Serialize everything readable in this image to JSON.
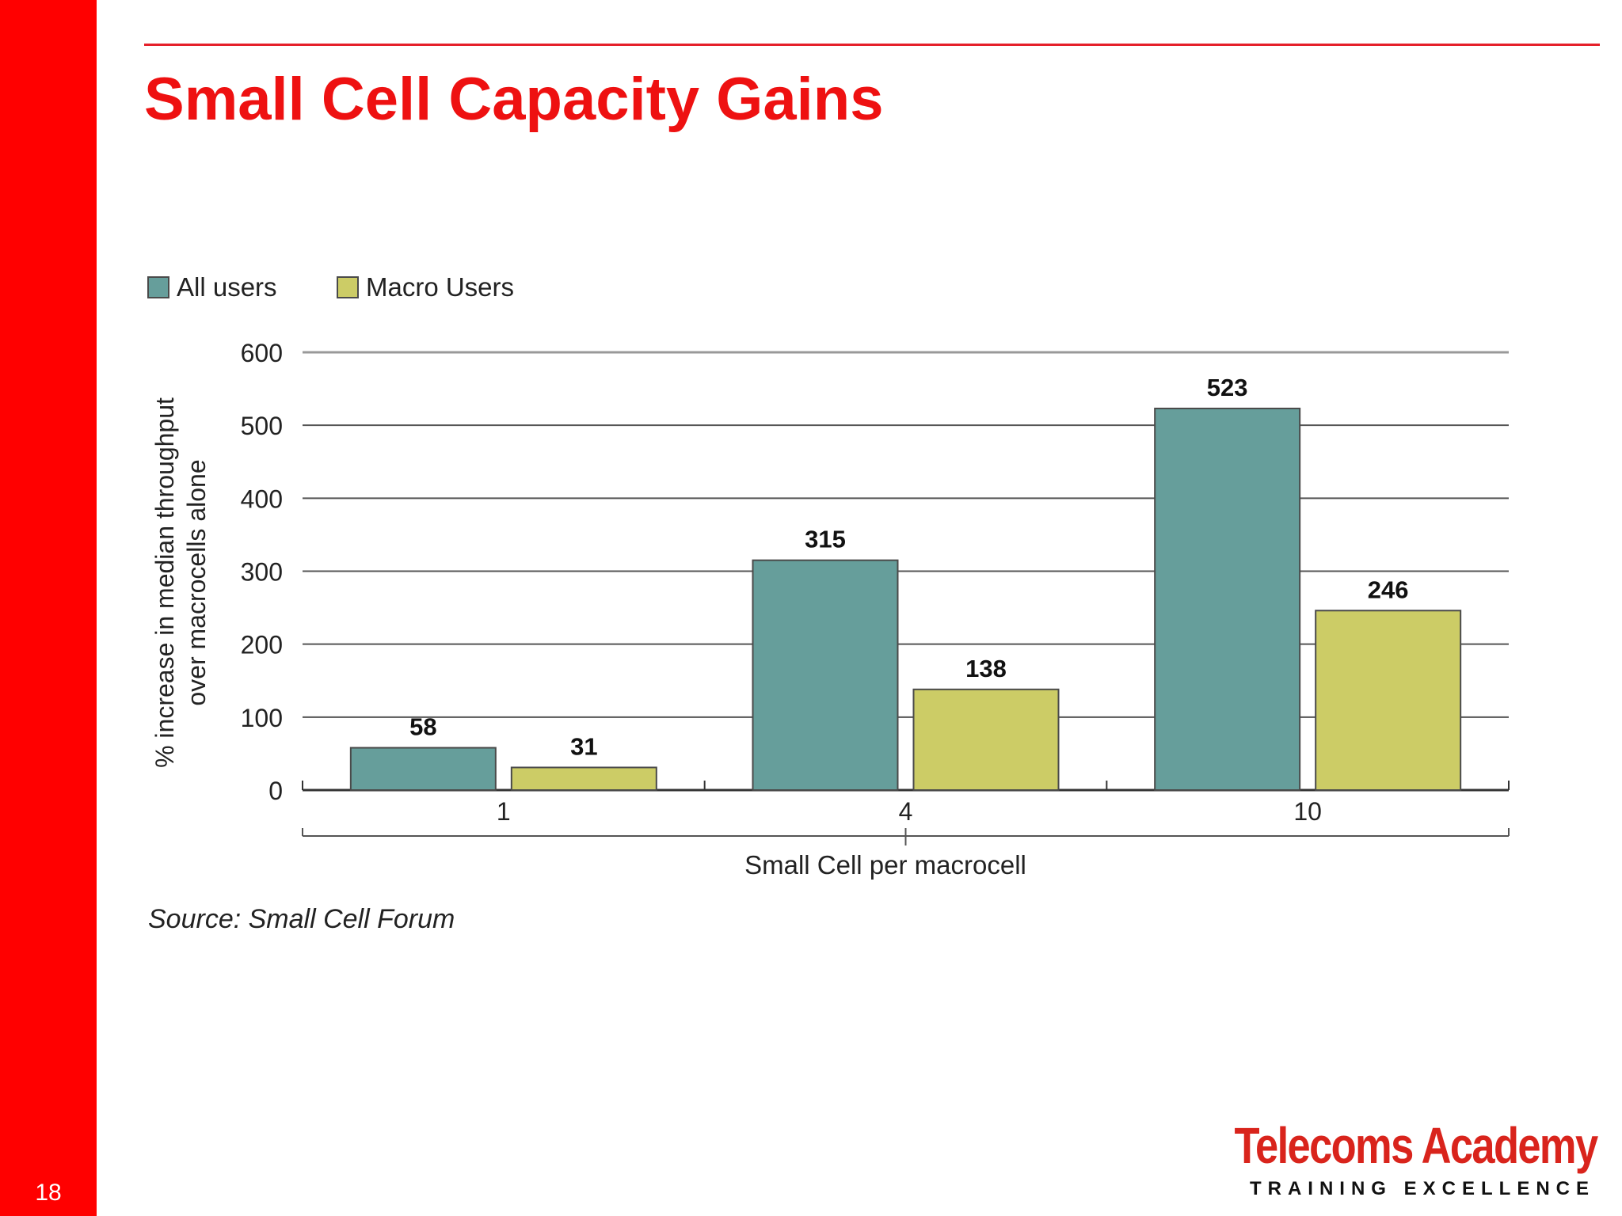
{
  "slide": {
    "title": "Small Cell Capacity Gains",
    "number": "18",
    "source": "Source: Small Cell Forum",
    "logo": {
      "name": "Telecoms Academy",
      "tagline": "TRAINING EXCELLENCE"
    }
  },
  "colors": {
    "sidebar": "#ff0000",
    "title": "#ee1111",
    "all_users": "#669e9b",
    "macro_users": "#cccc66"
  },
  "chart_data": {
    "type": "bar",
    "title": "",
    "categories": [
      "1",
      "4",
      "10"
    ],
    "series": [
      {
        "name": "All users",
        "values": [
          58,
          315,
          523
        ],
        "color": "#669e9b"
      },
      {
        "name": "Macro Users",
        "values": [
          31,
          138,
          246
        ],
        "color": "#cccc66"
      }
    ],
    "xlabel": "Small Cell per macrocell",
    "ylabel_lines": [
      "% increase in median throughput",
      "over macrocells alone"
    ],
    "ylim": [
      0,
      600
    ],
    "yticks": [
      0,
      100,
      200,
      300,
      400,
      500,
      600
    ],
    "grid": true,
    "legend_position": "top-left",
    "data_labels": true
  }
}
